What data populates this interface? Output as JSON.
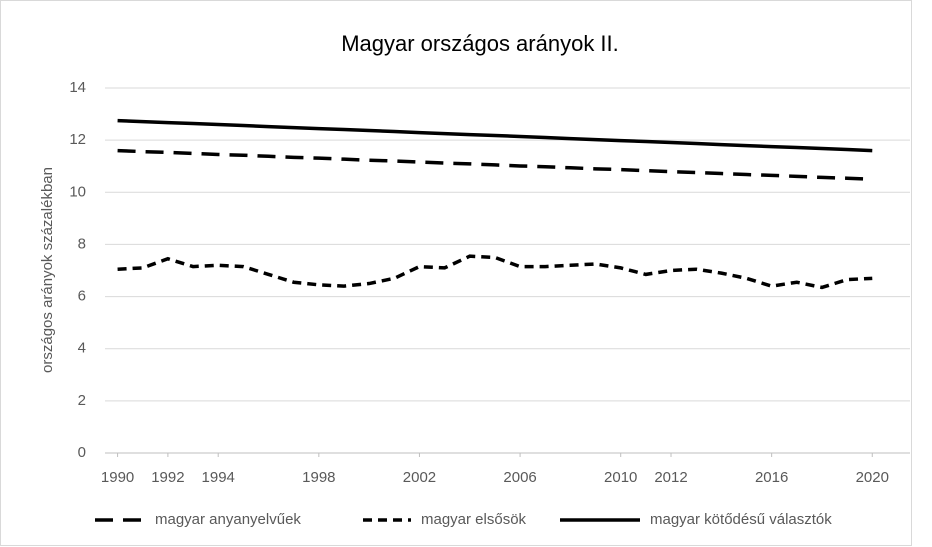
{
  "chart_data": {
    "type": "line",
    "title": "Magyar országos arányok II.",
    "y_label": "országos arányok százalékban",
    "x": [
      1990,
      1991,
      1992,
      1993,
      1994,
      1995,
      1996,
      1997,
      1998,
      1999,
      2000,
      2001,
      2002,
      2003,
      2004,
      2005,
      2006,
      2007,
      2008,
      2009,
      2010,
      2011,
      2012,
      2013,
      2014,
      2015,
      2016,
      2017,
      2018,
      2019,
      2020
    ],
    "xlim": [
      1989.5,
      2021.5
    ],
    "xticks": [
      1990,
      1992,
      1994,
      1998,
      2002,
      2006,
      2010,
      2012,
      2016,
      2020
    ],
    "ylim": [
      0,
      14
    ],
    "yticks": [
      0,
      2,
      4,
      6,
      8,
      10,
      12,
      14
    ],
    "grid": true,
    "legend": "bottom",
    "series": [
      {
        "name": "magyar anyanyelvűek",
        "color": "#000000",
        "dash": "18 10",
        "values": [
          11.6,
          11.56,
          11.53,
          11.49,
          11.45,
          11.42,
          11.38,
          11.34,
          11.31,
          11.27,
          11.23,
          11.2,
          11.16,
          11.12,
          11.09,
          11.05,
          11.01,
          10.98,
          10.94,
          10.9,
          10.87,
          10.83,
          10.79,
          10.76,
          10.72,
          10.68,
          10.65,
          10.61,
          10.57,
          10.54,
          10.5
        ]
      },
      {
        "name": "magyar elsősök",
        "color": "#000000",
        "dash": "9 6",
        "values": [
          7.05,
          7.1,
          7.45,
          7.15,
          7.2,
          7.15,
          6.85,
          6.55,
          6.45,
          6.4,
          6.5,
          6.7,
          7.15,
          7.1,
          7.55,
          7.5,
          7.15,
          7.15,
          7.2,
          7.25,
          7.1,
          6.85,
          7.0,
          7.05,
          6.9,
          6.7,
          6.4,
          6.55,
          6.35,
          6.65,
          6.7
        ]
      },
      {
        "name": "magyar kötődésű választók",
        "color": "#000000",
        "dash": "none",
        "values": [
          12.75,
          12.71,
          12.67,
          12.64,
          12.6,
          12.56,
          12.52,
          12.48,
          12.44,
          12.41,
          12.37,
          12.33,
          12.29,
          12.25,
          12.21,
          12.18,
          12.14,
          12.1,
          12.06,
          12.02,
          11.98,
          11.95,
          11.91,
          11.87,
          11.83,
          11.79,
          11.75,
          11.72,
          11.68,
          11.64,
          11.6
        ]
      }
    ]
  }
}
